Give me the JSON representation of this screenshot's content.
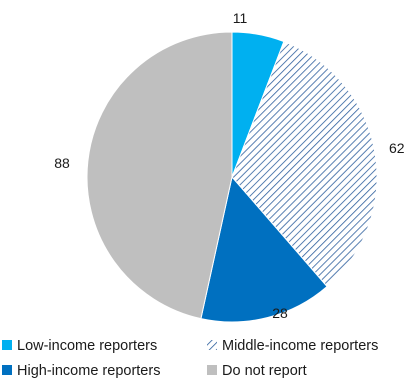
{
  "chart_data": {
    "type": "pie",
    "title": "",
    "slices": [
      {
        "label": "Low-income reporters",
        "value": 11,
        "color": "#00b0f0",
        "pattern": "solid"
      },
      {
        "label": "Middle-income reporters",
        "value": 62,
        "color": "#2e5f9e",
        "pattern": "diagonal-hatch"
      },
      {
        "label": "High-income reporters",
        "value": 28,
        "color": "#0070c0",
        "pattern": "solid"
      },
      {
        "label": "Do not report",
        "value": 88,
        "color": "#bfbfbf",
        "pattern": "solid"
      }
    ],
    "start_angle_deg": 0,
    "direction": "clockwise",
    "legend_position": "bottom"
  }
}
